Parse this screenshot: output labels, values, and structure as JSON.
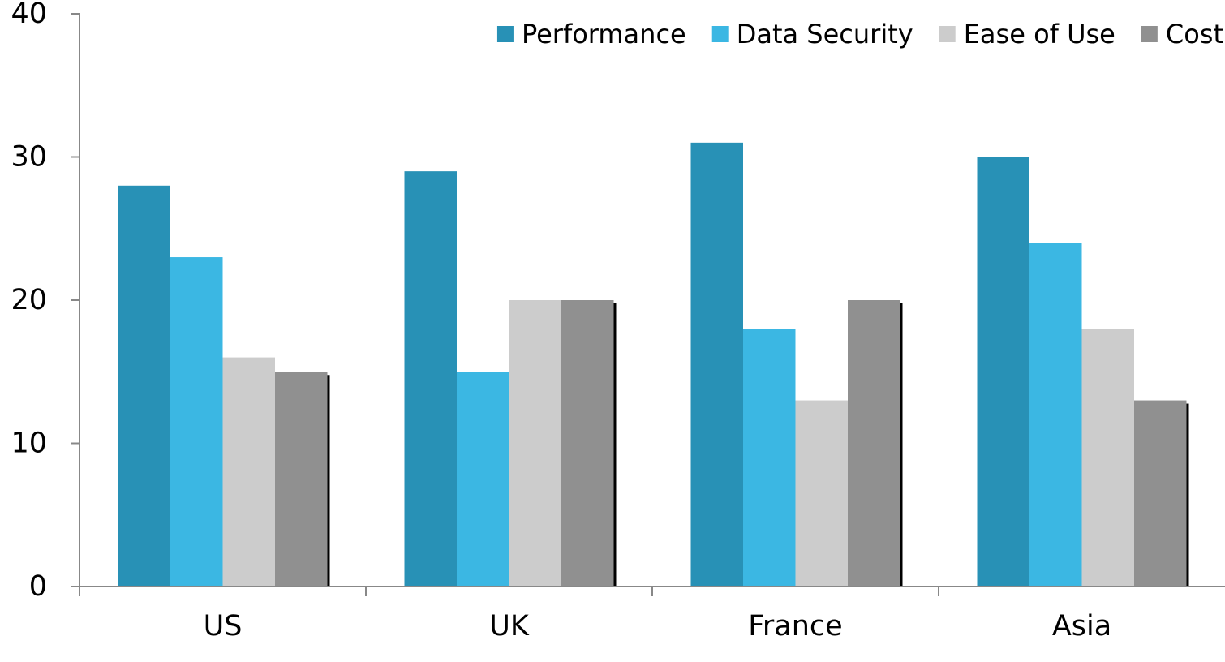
{
  "chart_data": {
    "type": "bar",
    "title": "",
    "xlabel": "",
    "ylabel": "",
    "ylim": [
      0,
      40
    ],
    "yticks": [
      0,
      10,
      20,
      30,
      40
    ],
    "grid": false,
    "legend_position": "top-right",
    "categories": [
      "US",
      "UK",
      "France",
      "Asia"
    ],
    "series": [
      {
        "name": "Performance",
        "color": "#2891b6",
        "values": [
          28,
          29,
          31,
          30
        ]
      },
      {
        "name": "Data Security",
        "color": "#3bb7e3",
        "values": [
          23,
          15,
          18,
          24
        ]
      },
      {
        "name": "Ease of Use",
        "color": "#cccccc",
        "values": [
          16,
          20,
          13,
          18
        ]
      },
      {
        "name": "Cost",
        "color": "#909090",
        "values": [
          15,
          20,
          20,
          13
        ]
      }
    ]
  }
}
